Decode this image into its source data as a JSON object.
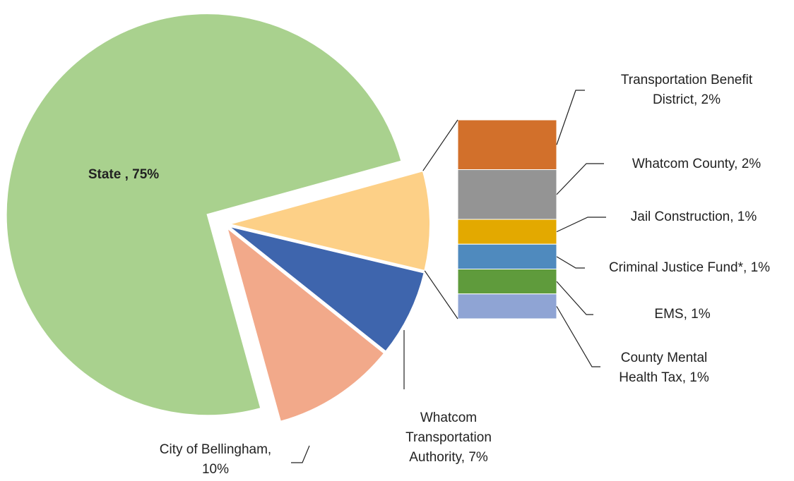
{
  "chart_data": {
    "type": "pie",
    "pie": {
      "values": [
        75,
        10,
        7
      ],
      "value_labels": [
        "State , 75%",
        "City of Bellingham,\n10%",
        "Whatcom\nTransportation\nAuthority, 7%"
      ],
      "colors": [
        "#a9d18e",
        "#f2a98a",
        "#3e65ad"
      ]
    },
    "bar": {
      "values": [
        2,
        2,
        1,
        1,
        1,
        1
      ],
      "value_labels": [
        "Transportation Benefit\nDistrict, 2%",
        "Whatcom County, 2%",
        "Jail Construction, 1%",
        "Criminal Justice Fund*, 1%",
        "EMS, 1%",
        "County Mental\nHealth Tax, 1%"
      ],
      "colors": [
        "#d2702b",
        "#949494",
        "#e3a900",
        "#4f8abe",
        "#5f9b3c",
        "#8fa4d4"
      ],
      "other_color": "#fdd087"
    }
  }
}
